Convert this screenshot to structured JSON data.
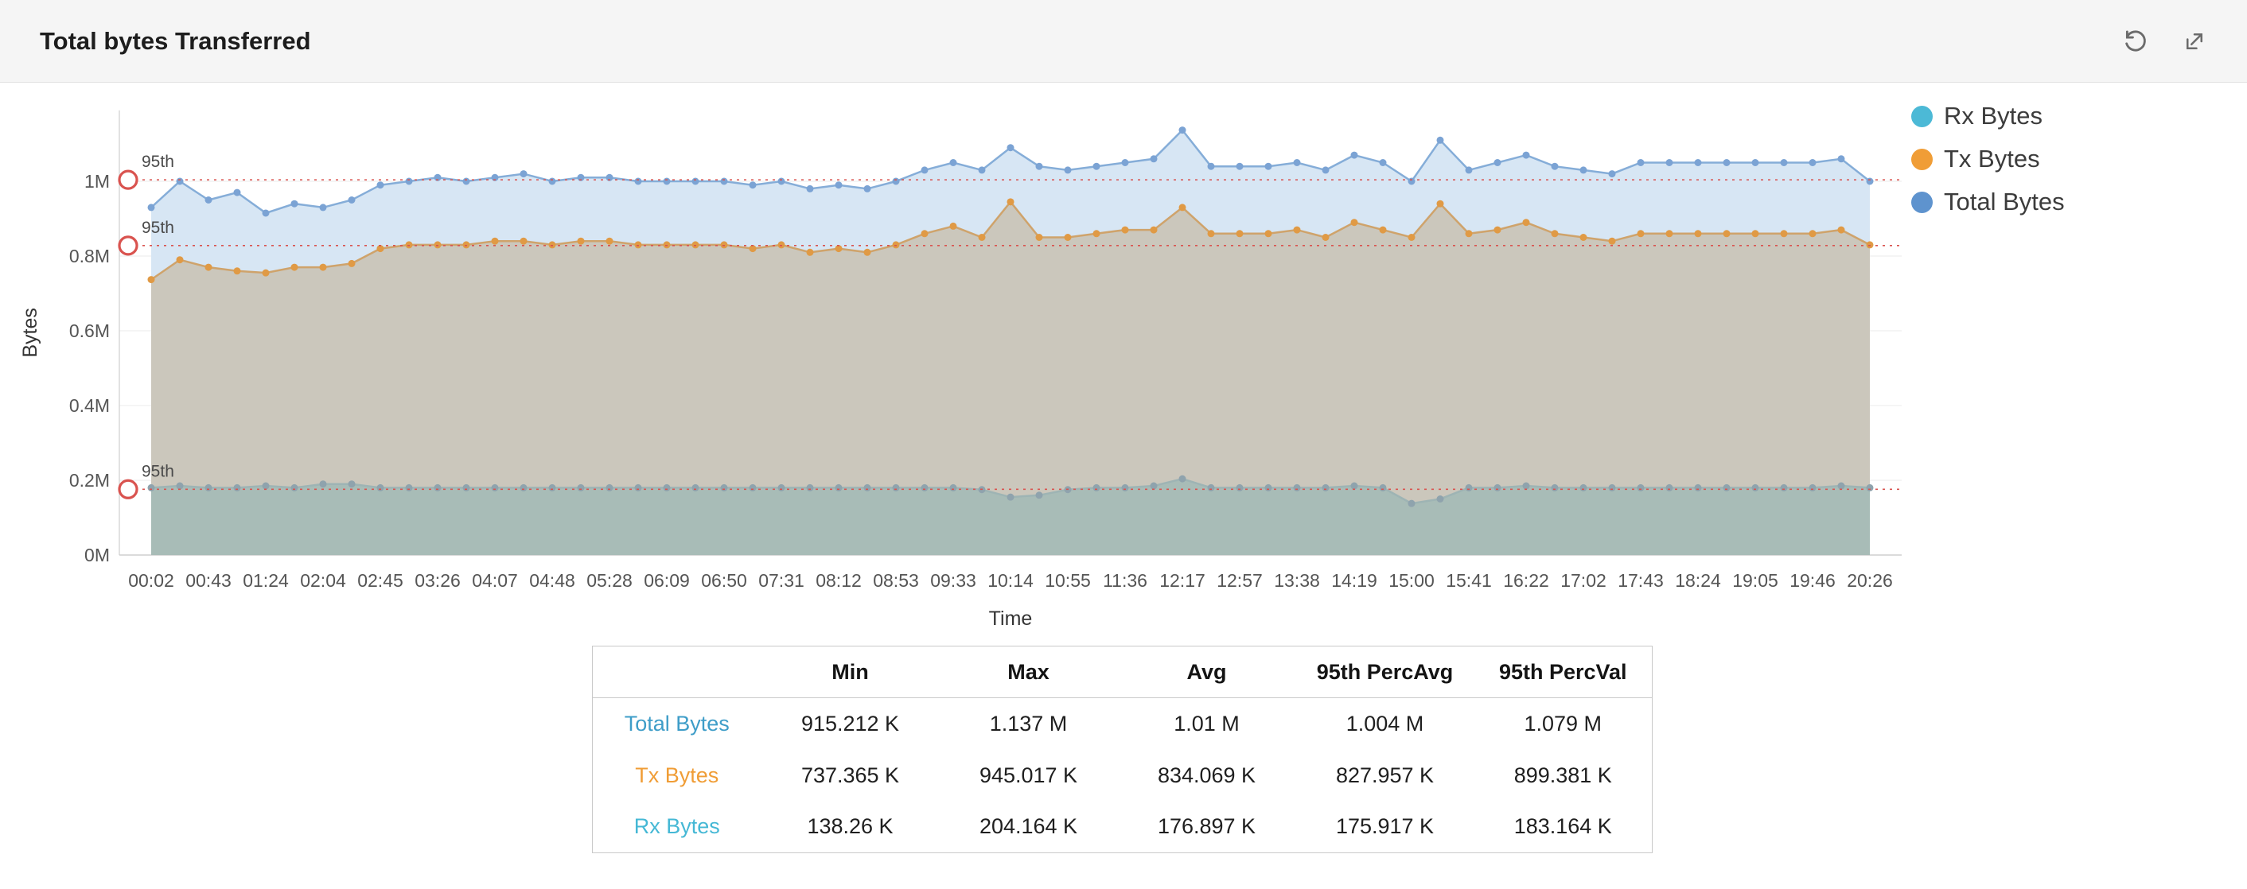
{
  "header": {
    "title": "Total bytes Transferred"
  },
  "chart_data": {
    "type": "area",
    "title": "Total bytes Transferred",
    "xlabel": "Time",
    "ylabel": "Bytes",
    "x_ticks": [
      "00:02",
      "00:43",
      "01:24",
      "02:04",
      "02:45",
      "03:26",
      "04:07",
      "04:48",
      "05:28",
      "06:09",
      "06:50",
      "07:31",
      "08:12",
      "08:53",
      "09:33",
      "10:14",
      "10:55",
      "11:36",
      "12:17",
      "12:57",
      "13:38",
      "14:19",
      "15:00",
      "15:41",
      "16:22",
      "17:02",
      "17:43",
      "18:24",
      "19:05",
      "19:46",
      "20:26"
    ],
    "y_ticks": [
      "0M",
      "0.2M",
      "0.4M",
      "0.6M",
      "0.8M",
      "1M"
    ],
    "ylim": [
      0,
      1.19
    ],
    "grid": true,
    "legend_position": "right",
    "percentile_color": "#d9534f",
    "series": [
      {
        "name": "Total Bytes",
        "color": "#85add8",
        "fill": "#d7e6f4",
        "dot": "#7ba3d4",
        "values": [
          0.93,
          1.0,
          0.95,
          0.97,
          0.915,
          0.94,
          0.93,
          0.95,
          0.99,
          1.0,
          1.01,
          1.0,
          1.01,
          1.02,
          1.0,
          1.01,
          1.01,
          1.0,
          1.0,
          1.0,
          1.0,
          0.99,
          1.0,
          0.98,
          0.99,
          0.98,
          1.0,
          1.03,
          1.05,
          1.03,
          1.09,
          1.04,
          1.03,
          1.04,
          1.05,
          1.06,
          1.137,
          1.04,
          1.04,
          1.04,
          1.05,
          1.03,
          1.07,
          1.05,
          1.0,
          1.11,
          1.03,
          1.05,
          1.07,
          1.04,
          1.03,
          1.02,
          1.05,
          1.05,
          1.05,
          1.05,
          1.05,
          1.05,
          1.05,
          1.06,
          1.0
        ]
      },
      {
        "name": "Tx Bytes",
        "color": "#cfa36b",
        "fill": "#cbc7bc",
        "dot": "#e09a45",
        "values": [
          0.737,
          0.79,
          0.77,
          0.76,
          0.755,
          0.77,
          0.77,
          0.78,
          0.82,
          0.83,
          0.83,
          0.83,
          0.84,
          0.84,
          0.83,
          0.84,
          0.84,
          0.83,
          0.83,
          0.83,
          0.83,
          0.82,
          0.83,
          0.81,
          0.82,
          0.81,
          0.83,
          0.86,
          0.88,
          0.85,
          0.945,
          0.85,
          0.85,
          0.86,
          0.87,
          0.87,
          0.93,
          0.86,
          0.86,
          0.86,
          0.87,
          0.85,
          0.89,
          0.87,
          0.85,
          0.94,
          0.86,
          0.87,
          0.89,
          0.86,
          0.85,
          0.84,
          0.86,
          0.86,
          0.86,
          0.86,
          0.86,
          0.86,
          0.86,
          0.87,
          0.83
        ]
      },
      {
        "name": "Rx Bytes",
        "color": "#9eb4b4",
        "fill": "#a8bcb7",
        "dot": "#8fa3ad",
        "values": [
          0.18,
          0.185,
          0.18,
          0.18,
          0.185,
          0.18,
          0.19,
          0.19,
          0.18,
          0.18,
          0.18,
          0.18,
          0.18,
          0.18,
          0.18,
          0.18,
          0.18,
          0.18,
          0.18,
          0.18,
          0.18,
          0.18,
          0.18,
          0.18,
          0.18,
          0.18,
          0.18,
          0.18,
          0.18,
          0.175,
          0.155,
          0.16,
          0.175,
          0.18,
          0.18,
          0.185,
          0.204,
          0.18,
          0.18,
          0.18,
          0.18,
          0.18,
          0.185,
          0.18,
          0.138,
          0.15,
          0.18,
          0.18,
          0.185,
          0.18,
          0.18,
          0.18,
          0.18,
          0.18,
          0.18,
          0.18,
          0.18,
          0.18,
          0.18,
          0.185,
          0.18
        ]
      }
    ],
    "percentile_lines": [
      {
        "label": "95th",
        "value": 1.004
      },
      {
        "label": "95th",
        "value": 0.828
      },
      {
        "label": "95th",
        "value": 0.176
      }
    ],
    "legend": [
      {
        "label": "Rx Bytes",
        "color": "#4cb9d6"
      },
      {
        "label": "Tx Bytes",
        "color": "#f09d36"
      },
      {
        "label": "Total Bytes",
        "color": "#5e93ce"
      }
    ]
  },
  "table": {
    "headers": [
      "",
      "Min",
      "Max",
      "Avg",
      "95th PercAvg",
      "95th PercVal"
    ],
    "rows": [
      {
        "label": "Total Bytes",
        "color": "#3e9dc8",
        "values": [
          "915.212 K",
          "1.137 M",
          "1.01 M",
          "1.004 M",
          "1.079 M"
        ]
      },
      {
        "label": "Tx Bytes",
        "color": "#f09d36",
        "values": [
          "737.365 K",
          "945.017 K",
          "834.069 K",
          "827.957 K",
          "899.381 K"
        ]
      },
      {
        "label": "Rx Bytes",
        "color": "#45b8d5",
        "values": [
          "138.26 K",
          "204.164 K",
          "176.897 K",
          "175.917 K",
          "183.164 K"
        ]
      }
    ]
  }
}
